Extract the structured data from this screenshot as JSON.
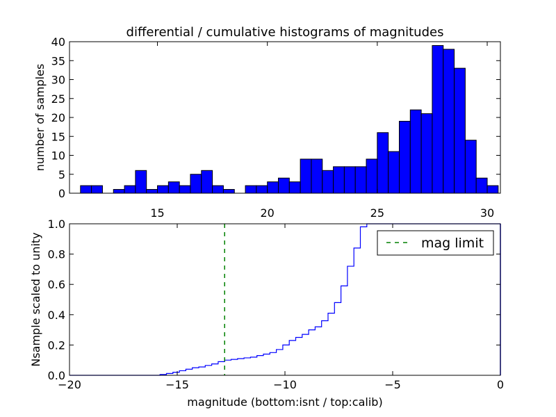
{
  "chart_data": [
    {
      "type": "bar",
      "title": "differential / cumulative histograms of magnitudes",
      "ylabel": "number of samples",
      "xlim": [
        11,
        30.6
      ],
      "ylim": [
        0,
        40
      ],
      "xticks": [
        "15",
        "20",
        "25",
        "30"
      ],
      "yticks": [
        "0",
        "5",
        "10",
        "15",
        "20",
        "25",
        "30",
        "35",
        "40"
      ],
      "bar_color": "#0000ff",
      "bin_start": 11.5,
      "bin_width": 0.5,
      "values": [
        2,
        2,
        0,
        1,
        2,
        6,
        1,
        2,
        3,
        2,
        5,
        6,
        2,
        1,
        0,
        2,
        2,
        3,
        4,
        3,
        9,
        9,
        6,
        7,
        7,
        7,
        9,
        16,
        11,
        19,
        22,
        21,
        39,
        38,
        33,
        14,
        4,
        2
      ]
    },
    {
      "type": "line",
      "ylabel": "Nsample scaled to unity",
      "xlabel": "magnitude (bottom:isnt / top:calib)",
      "xlim": [
        -20,
        0
      ],
      "ylim": [
        0,
        1
      ],
      "xticks": [
        "−20",
        "−15",
        "−10",
        "−5",
        "0"
      ],
      "yticks": [
        "0.0",
        "0.2",
        "0.4",
        "0.6",
        "0.8",
        "1.0"
      ],
      "series_color": "#0000ff",
      "x": [
        -20,
        -15.8,
        -15.5,
        -15.2,
        -14.9,
        -14.6,
        -14.3,
        -14.0,
        -13.7,
        -13.4,
        -13.1,
        -12.8,
        -12.5,
        -12.2,
        -11.9,
        -11.6,
        -11.3,
        -11.0,
        -10.7,
        -10.4,
        -10.1,
        -9.8,
        -9.5,
        -9.2,
        -8.9,
        -8.6,
        -8.3,
        -8.0,
        -7.7,
        -7.4,
        -7.1,
        -6.8,
        -6.5,
        -6.2,
        0
      ],
      "y": [
        0,
        0.005,
        0.012,
        0.02,
        0.03,
        0.04,
        0.05,
        0.055,
        0.065,
        0.075,
        0.09,
        0.1,
        0.105,
        0.11,
        0.115,
        0.12,
        0.13,
        0.14,
        0.15,
        0.17,
        0.2,
        0.23,
        0.25,
        0.27,
        0.3,
        0.32,
        0.36,
        0.41,
        0.48,
        0.59,
        0.72,
        0.84,
        0.98,
        1.0,
        1.0
      ],
      "mag_limit": {
        "x": -12.8,
        "label": "mag limit",
        "color": "#008000"
      },
      "legend_position": "top-right"
    }
  ]
}
